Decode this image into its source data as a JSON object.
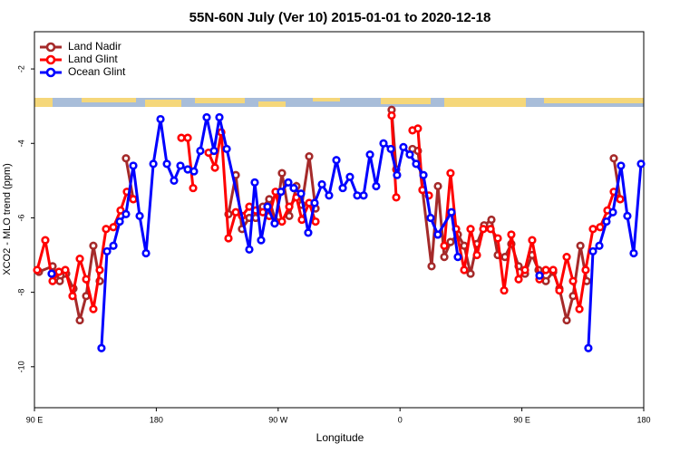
{
  "chart_data": {
    "type": "line",
    "title": "55N-60N July (Ver 10)   2015-01-01 to 2020-12-18",
    "x_label": "Longitude",
    "y_label": "XCO2 - MLO trend (ppm)",
    "xlim": [
      90,
      540
    ],
    "xticks": [
      {
        "value": 90,
        "label": "90 E"
      },
      180,
      {
        "value": 270,
        "label": "90 W"
      },
      {
        "value": 360,
        "label": "0"
      },
      {
        "value": 450,
        "label": "90 E"
      },
      {
        "value": 540,
        "label": "180"
      }
    ],
    "ylim": [
      -11.1,
      -1
    ],
    "yticks": [
      -2,
      -4,
      -6,
      -8,
      -10
    ],
    "legend": "top-left",
    "series": [
      {
        "name": "Land Nadir",
        "color": "#a52a2a",
        "x": [
          93.3,
          103.4,
          108.7,
          113.4,
          118.8,
          123.5,
          128.2,
          133.5,
          138.2,
          null,
          157.6,
          163.0,
          null,
          233.3,
          238.7,
          243.3,
          248.7,
          253.4,
          258.7,
          263.4,
          268.1,
          272.8,
          278.2,
          283.5,
          287.5,
          292.9,
          297.6,
          null,
          353.8,
          357.2,
          null,
          369.2,
          373.2,
          376.6,
          383.3,
          388.0,
          392.7,
          397.3,
          402.7,
          407.4,
          412.1,
          416.8,
          422.1,
          427.5,
          432.2,
          437.5,
          442.2,
          447.6,
          452.3,
          457.6,
          462.3,
          467.7,
          473.1,
          477.7,
          483.1,
          487.8,
          493.2,
          497.9,
          null,
          517.9,
          522.6
        ],
        "values": [
          -7.45,
          -7.3,
          -7.7,
          -7.5,
          -7.9,
          -8.75,
          -8.1,
          -6.75,
          -7.7,
          null,
          -4.4,
          -5.5,
          null,
          -5.9,
          -4.85,
          -6.3,
          -6.0,
          -6.0,
          -5.7,
          -5.5,
          -6.1,
          -4.8,
          -5.95,
          -5.15,
          -5.65,
          -4.35,
          -5.75,
          null,
          -3.1,
          -4.7,
          null,
          -4.15,
          -4.2,
          -5.25,
          -7.3,
          -5.15,
          -7.05,
          -6.65,
          -6.45,
          -6.75,
          -7.5,
          -6.7,
          -6.2,
          -6.05,
          -7.0,
          -7.05,
          -6.7,
          -7.3,
          -7.5,
          -7.0,
          -7.4,
          -7.7,
          -7.45,
          -7.9,
          -8.75,
          -8.1,
          -6.75,
          -7.7,
          null,
          -4.4,
          -5.5
        ]
      },
      {
        "name": "Land Glint",
        "color": "#ff0000",
        "x": [
          92.0,
          98.0,
          103.4,
          108.1,
          112.8,
          118.1,
          123.5,
          128.2,
          133.5,
          138.2,
          142.9,
          148.3,
          153.6,
          158.3,
          163.0,
          null,
          198.5,
          203.2,
          207.2,
          null,
          218.6,
          223.3,
          228.0,
          233.3,
          238.7,
          243.3,
          248.7,
          253.4,
          258.7,
          263.4,
          268.1,
          272.8,
          278.2,
          283.5,
          287.5,
          292.9,
          297.6,
          null,
          353.8,
          357.2,
          null,
          369.2,
          373.2,
          376.6,
          381.3,
          null,
          392.7,
          397.3,
          401.4,
          407.4,
          412.1,
          416.8,
          421.5,
          426.9,
          432.2,
          436.9,
          442.2,
          447.6,
          452.3,
          457.6,
          463.0,
          467.7,
          473.1,
          477.7,
          483.1,
          487.8,
          492.5,
          497.1,
          502.5,
          507.8,
          513.2,
          517.9,
          522.6
        ],
        "values": [
          -7.4,
          -6.6,
          -7.7,
          -7.45,
          -7.4,
          -8.1,
          -7.1,
          -7.65,
          -8.45,
          -7.4,
          -6.3,
          -6.25,
          -5.8,
          -5.3,
          -5.5,
          null,
          -3.85,
          -3.85,
          -5.2,
          null,
          -4.25,
          -4.65,
          -3.7,
          -6.55,
          -5.85,
          -5.95,
          -5.7,
          -5.8,
          -5.85,
          -5.95,
          -5.3,
          -6.1,
          -5.7,
          -5.45,
          -6.05,
          -5.6,
          -6.1,
          null,
          -3.25,
          -5.45,
          null,
          -3.65,
          -3.6,
          -5.25,
          -5.4,
          null,
          -6.75,
          -4.8,
          -6.3,
          -7.4,
          -6.3,
          -7.0,
          -6.3,
          -6.3,
          -6.55,
          -7.95,
          -6.45,
          -7.65,
          -7.4,
          -6.6,
          -7.65,
          -7.4,
          -7.4,
          -7.95,
          -7.05,
          -7.7,
          -8.45,
          -7.4,
          -6.3,
          -6.25,
          -5.8,
          -5.3,
          -5.5
        ]
      },
      {
        "name": "Ocean Glint",
        "color": "#0000ff",
        "x": [
          102.7,
          null,
          139.5,
          143.6,
          148.3,
          153.0,
          157.6,
          163.0,
          167.7,
          172.4,
          177.8,
          183.1,
          187.8,
          193.1,
          197.8,
          203.2,
          207.8,
          212.5,
          217.2,
          222.6,
          226.6,
          232.0,
          248.7,
          252.7,
          257.4,
          262.1,
          267.4,
          272.1,
          277.5,
          281.5,
          286.9,
          292.2,
          296.9,
          302.3,
          307.6,
          313.0,
          317.7,
          323.0,
          328.4,
          333.1,
          337.8,
          342.4,
          347.8,
          353.2,
          357.8,
          362.5,
          367.2,
          371.9,
          377.3,
          382.6,
          387.9,
          398.0,
          402.7,
          null,
          463.0,
          null,
          499.1,
          502.5,
          507.2,
          512.5,
          517.2,
          523.2,
          527.9,
          532.6,
          538.0
        ],
        "values": [
          -7.5,
          null,
          -9.5,
          -6.9,
          -6.75,
          -6.1,
          -5.9,
          -4.6,
          -5.95,
          -6.95,
          -4.55,
          -3.35,
          -4.55,
          -5.0,
          -4.6,
          -4.7,
          -4.75,
          -4.2,
          -3.3,
          -4.2,
          -3.3,
          -4.15,
          -6.85,
          -5.05,
          -6.6,
          -5.7,
          -6.15,
          -5.3,
          -5.05,
          -5.2,
          -5.35,
          -6.4,
          -5.6,
          -5.1,
          -5.4,
          -4.45,
          -5.2,
          -4.9,
          -5.4,
          -5.4,
          -4.3,
          -5.15,
          -4.0,
          -4.15,
          -4.85,
          -4.1,
          -4.3,
          -4.55,
          -4.85,
          -6.0,
          -6.45,
          -5.85,
          -7.05,
          null,
          -7.55,
          null,
          -9.5,
          -6.9,
          -6.75,
          -6.1,
          -5.85,
          -4.6,
          -5.95,
          -6.95,
          -4.55
        ]
      }
    ]
  }
}
